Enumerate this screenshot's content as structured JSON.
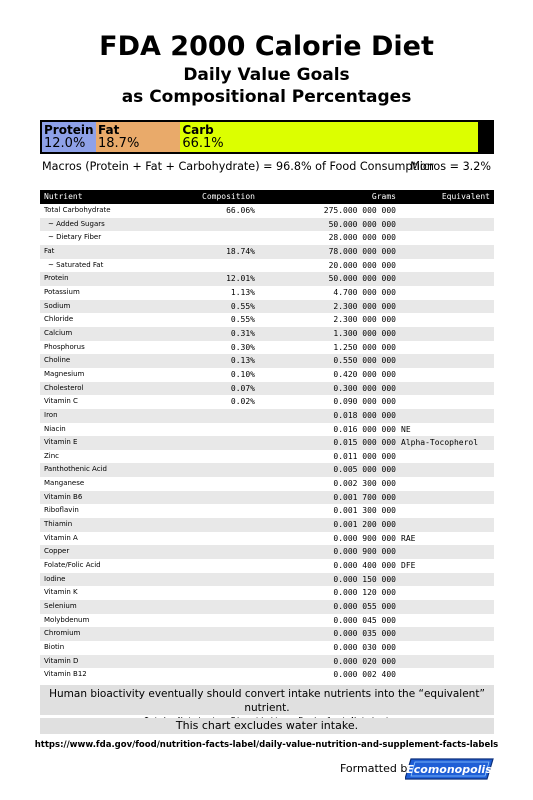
{
  "title": "FDA 2000 Calorie Diet",
  "subtitle_line1": "Daily Value Goals",
  "subtitle_line2": "as Compositional Percentages",
  "macro_bar": [
    {
      "name": "Protein",
      "percent_label": "12.0%",
      "value": 12.0,
      "color": "#8ea1e8"
    },
    {
      "name": "Fat",
      "percent_label": "18.7%",
      "value": 18.74,
      "color": "#e9aa6a"
    },
    {
      "name": "Carb",
      "percent_label": "66.1%",
      "value": 66.06,
      "color": "#dcff00"
    }
  ],
  "macro_summary": "Macros (Protein + Fat + Carbohydrate) = 96.8% of Food Consumption",
  "micro_summary": "Micros = 3.2%",
  "table": {
    "headers": {
      "nutrient": "Nutrient",
      "composition": "Composition",
      "grams": "Grams",
      "equivalent": "Equivalent"
    },
    "rows": [
      {
        "nutrient": "Total Carbohydrate",
        "composition": "66.06%",
        "grams": "275.000 000 000",
        "equivalent": ""
      },
      {
        "nutrient": "~  Added Sugars",
        "composition": "",
        "grams": "50.000 000 000",
        "equivalent": "",
        "indent": true
      },
      {
        "nutrient": "~  Dietary Fiber",
        "composition": "",
        "grams": "28.000 000 000",
        "equivalent": "",
        "indent": true
      },
      {
        "nutrient": "Fat",
        "composition": "18.74%",
        "grams": "78.000 000 000",
        "equivalent": ""
      },
      {
        "nutrient": "~  Saturated Fat",
        "composition": "",
        "grams": "20.000 000 000",
        "equivalent": "",
        "indent": true
      },
      {
        "nutrient": "Protein",
        "composition": "12.01%",
        "grams": "50.000 000 000",
        "equivalent": ""
      },
      {
        "nutrient": "Potassium",
        "composition": "1.13%",
        "grams": "4.700 000 000",
        "equivalent": ""
      },
      {
        "nutrient": "Sodium",
        "composition": "0.55%",
        "grams": "2.300 000 000",
        "equivalent": ""
      },
      {
        "nutrient": "Chloride",
        "composition": "0.55%",
        "grams": "2.300 000 000",
        "equivalent": ""
      },
      {
        "nutrient": "Calcium",
        "composition": "0.31%",
        "grams": "1.300 000 000",
        "equivalent": ""
      },
      {
        "nutrient": "Phosphorus",
        "composition": "0.30%",
        "grams": "1.250 000 000",
        "equivalent": ""
      },
      {
        "nutrient": "Choline",
        "composition": "0.13%",
        "grams": "0.550 000 000",
        "equivalent": ""
      },
      {
        "nutrient": "Magnesium",
        "composition": "0.10%",
        "grams": "0.420 000 000",
        "equivalent": ""
      },
      {
        "nutrient": "Cholesterol",
        "composition": "0.07%",
        "grams": "0.300 000 000",
        "equivalent": ""
      },
      {
        "nutrient": "Vitamin C",
        "composition": "0.02%",
        "grams": "0.090 000 000",
        "equivalent": ""
      },
      {
        "nutrient": "Iron",
        "composition": "",
        "grams": "0.018 000 000",
        "equivalent": ""
      },
      {
        "nutrient": "Niacin",
        "composition": "",
        "grams": "0.016 000 000",
        "equivalent": "NE"
      },
      {
        "nutrient": "Vitamin E",
        "composition": "",
        "grams": "0.015 000 000",
        "equivalent": "Alpha-Tocopherol"
      },
      {
        "nutrient": "Zinc",
        "composition": "",
        "grams": "0.011 000 000",
        "equivalent": ""
      },
      {
        "nutrient": "Panthothenic Acid",
        "composition": "",
        "grams": "0.005 000 000",
        "equivalent": ""
      },
      {
        "nutrient": "Manganese",
        "composition": "",
        "grams": "0.002 300 000",
        "equivalent": ""
      },
      {
        "nutrient": "Vitamin B6",
        "composition": "",
        "grams": "0.001 700 000",
        "equivalent": ""
      },
      {
        "nutrient": "Riboflavin",
        "composition": "",
        "grams": "0.001 300 000",
        "equivalent": ""
      },
      {
        "nutrient": "Thiamin",
        "composition": "",
        "grams": "0.001 200 000",
        "equivalent": ""
      },
      {
        "nutrient": "Vitamin A",
        "composition": "",
        "grams": "0.000 900 000",
        "equivalent": "RAE"
      },
      {
        "nutrient": "Copper",
        "composition": "",
        "grams": "0.000 900 000",
        "equivalent": ""
      },
      {
        "nutrient": "Folate/Folic Acid",
        "composition": "",
        "grams": "0.000 400 000",
        "equivalent": "DFE"
      },
      {
        "nutrient": "Iodine",
        "composition": "",
        "grams": "0.000 150 000",
        "equivalent": ""
      },
      {
        "nutrient": "Vitamin K",
        "composition": "",
        "grams": "0.000 120 000",
        "equivalent": ""
      },
      {
        "nutrient": "Selenium",
        "composition": "",
        "grams": "0.000 055 000",
        "equivalent": ""
      },
      {
        "nutrient": "Molybdenum",
        "composition": "",
        "grams": "0.000 045 000",
        "equivalent": ""
      },
      {
        "nutrient": "Chromium",
        "composition": "",
        "grams": "0.000 035 000",
        "equivalent": ""
      },
      {
        "nutrient": "Biotin",
        "composition": "",
        "grams": "0.000 030 000",
        "equivalent": ""
      },
      {
        "nutrient": "Vitamin D",
        "composition": "",
        "grams": "0.000 020 000",
        "equivalent": ""
      },
      {
        "nutrient": "Vitamin B12",
        "composition": "",
        "grams": "0.000 002 400",
        "equivalent": ""
      }
    ]
  },
  "bioactivity_note": "Human bioactivity eventually should convert intake nutrients into the “equivalent” nutrient.",
  "bioactivity_formula": "Intake Nutrient + Bioactivity → Equivalent Nutrient",
  "water_note": "This chart excludes water intake.",
  "source_url": "https://www.fda.gov/food/nutrition-facts-label/daily-value-nutrition-and-supplement-facts-labels",
  "formatted_by": "Formatted by",
  "logo_text": "Ecomonopolis",
  "chart_data": {
    "type": "bar",
    "orientation": "horizontal-stacked",
    "title": "FDA 2000 Calorie Diet",
    "subtitle": "Daily Value Goals as Compositional Percentages",
    "categories": [
      "Protein",
      "Fat",
      "Carb"
    ],
    "values": [
      12.0,
      18.7,
      66.1
    ],
    "colors": [
      "#8ea1e8",
      "#e9aa6a",
      "#dcff00"
    ],
    "xlim": [
      0,
      100
    ],
    "grid": false
  }
}
